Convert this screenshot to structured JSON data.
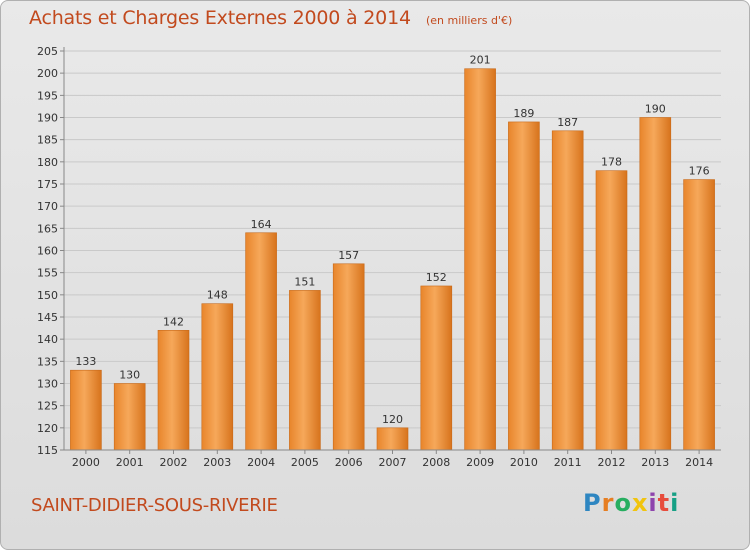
{
  "header": {
    "title": "Achats et Charges Externes 2000 à 2014",
    "subtitle": "(en milliers d'€)"
  },
  "footer": {
    "commune": "SAINT-DIDIER-SOUS-RIVERIE",
    "logo": "Proxiti"
  },
  "colors": {
    "title": "#c24a1e",
    "bar_light": "#f6a85a",
    "bar_dark": "#d7731c",
    "grid": "#c9c9c9",
    "background": "#e4e4e4"
  },
  "chart_data": {
    "type": "bar",
    "title": "Achats et Charges Externes 2000 à 2014",
    "subtitle": "(en milliers d'€)",
    "xlabel": "",
    "ylabel": "",
    "categories": [
      "2000",
      "2001",
      "2002",
      "2003",
      "2004",
      "2005",
      "2006",
      "2007",
      "2008",
      "2009",
      "2010",
      "2011",
      "2012",
      "2013",
      "2014"
    ],
    "values": [
      133,
      130,
      142,
      148,
      164,
      151,
      157,
      120,
      152,
      201,
      189,
      187,
      178,
      190,
      176
    ],
    "value_labels": [
      "133",
      "130",
      "142",
      "148",
      "164",
      "151",
      "157",
      "120",
      "152",
      "201",
      "189",
      "187",
      "178",
      "190",
      "176"
    ],
    "ylim": [
      115,
      205
    ],
    "yticks": [
      "115",
      "120",
      "125",
      "130",
      "135",
      "140",
      "145",
      "150",
      "155",
      "160",
      "165",
      "170",
      "175",
      "180",
      "185",
      "190",
      "195",
      "200",
      "205"
    ],
    "grid": true,
    "legend": "none"
  }
}
